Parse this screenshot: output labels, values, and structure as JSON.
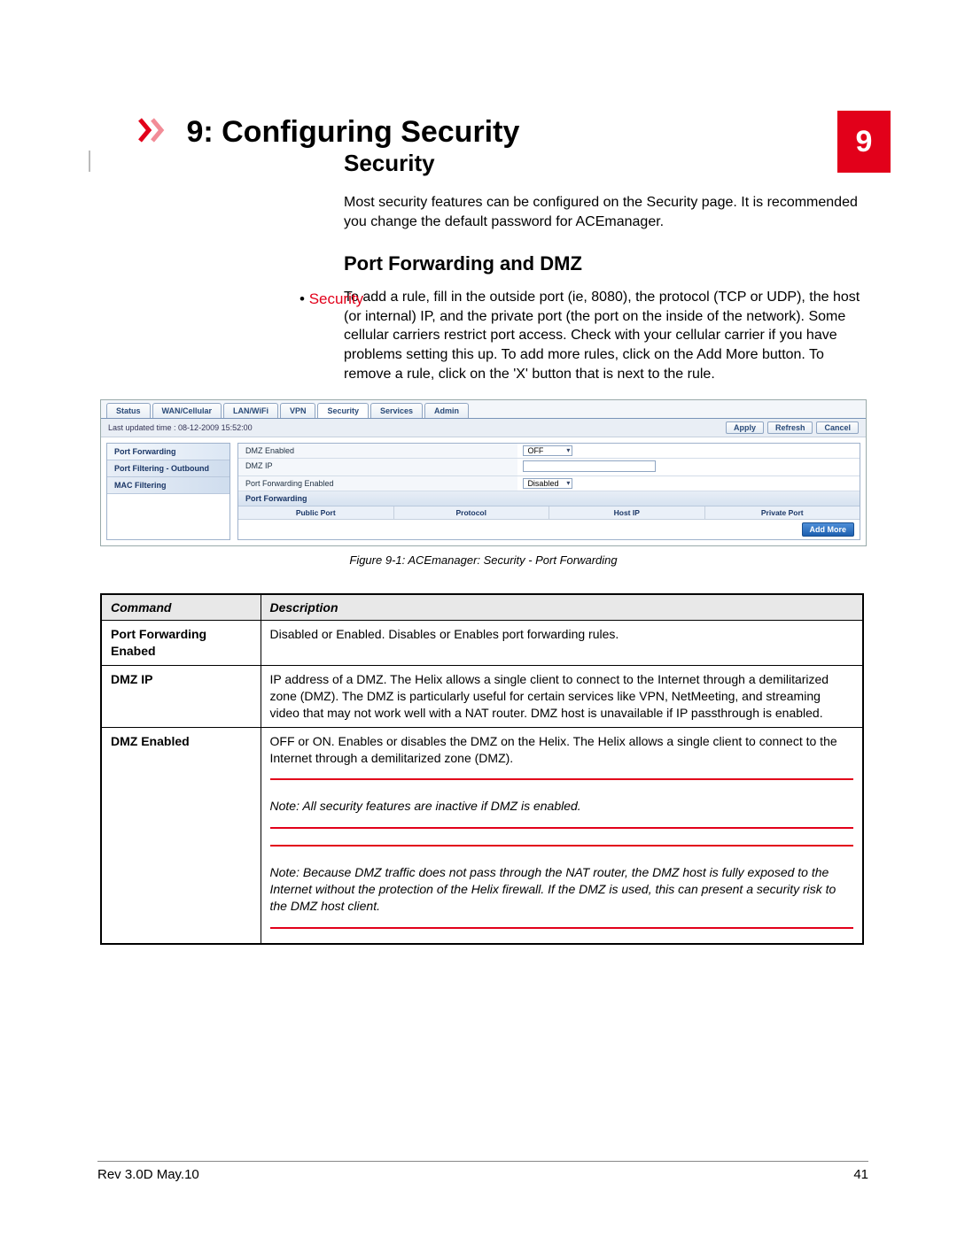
{
  "chapter": {
    "number": "9",
    "title": "9: Configuring Security"
  },
  "toc": {
    "bullet": "•",
    "link": "Security"
  },
  "section": {
    "heading": "Security"
  },
  "intro_p": "Most security features can be configured on the Security page. It is recommended you change the default password for ACEmanager.",
  "sub": {
    "heading": "Port Forwarding and DMZ"
  },
  "sub_p": "To add a rule, fill in the outside port (ie, 8080), the protocol (TCP or UDP), the host (or internal) IP, and the private port (the port on the inside of the network). Some cellular carriers restrict port access. Check with your cellular carrier if you have problems setting this up. To add more rules, click on the Add More button. To remove a rule, click on the 'X' button that is next to the rule.",
  "figure": {
    "tabs": [
      "Status",
      "WAN/Cellular",
      "LAN/WiFi",
      "VPN",
      "Security",
      "Services",
      "Admin"
    ],
    "active_tab_index": 4,
    "last_updated": "Last updated time : 08-12-2009 15:52:00",
    "buttons": {
      "apply": "Apply",
      "refresh": "Refresh",
      "cancel": "Cancel"
    },
    "side": [
      "Port Forwarding",
      "Port Filtering - Outbound",
      "MAC Filtering"
    ],
    "fields": {
      "dmz_enabled_label": "DMZ Enabled",
      "dmz_enabled_value": "OFF",
      "dmz_ip_label": "DMZ IP",
      "pf_enabled_label": "Port Forwarding Enabled",
      "pf_enabled_value": "Disabled",
      "pf_header": "Port Forwarding",
      "cols": [
        "Public Port",
        "Protocol",
        "Host IP",
        "Private Port"
      ],
      "add_more": "Add More"
    },
    "caption": "Figure 9-1: ACEmanager: Security - Port Forwarding"
  },
  "table": {
    "headers": {
      "cmd": "Command",
      "desc": "Description"
    },
    "rows": [
      {
        "cmd": "Port Forwarding Enabed",
        "desc": "Disabled or Enabled. Disables or Enables port forwarding rules."
      },
      {
        "cmd": "DMZ IP",
        "desc": "IP address of a DMZ. The Helix allows a single client to connect to the Internet through a demilitarized zone (DMZ). The DMZ is particularly useful for certain services like VPN, NetMeeting, and streaming video that may not work well with a NAT router. DMZ host is unavailable if IP passthrough is enabled."
      },
      {
        "cmd": "DMZ Enabled",
        "desc": "OFF or ON. Enables or disables the DMZ on the Helix. The Helix allows a single client to connect to the Internet through a demilitarized zone (DMZ)."
      }
    ],
    "note1": "Note: All security features are inactive if DMZ is enabled.",
    "note2": "Note: Because DMZ traffic does not pass through the NAT router, the DMZ host is fully exposed to the Internet without the protection of the Helix firewall. If the DMZ is used, this can present a security risk to the DMZ host client."
  },
  "footer": {
    "rev": "Rev 3.0D  May.10",
    "page": "41"
  },
  "colors": {
    "accent": "#e2001a"
  }
}
